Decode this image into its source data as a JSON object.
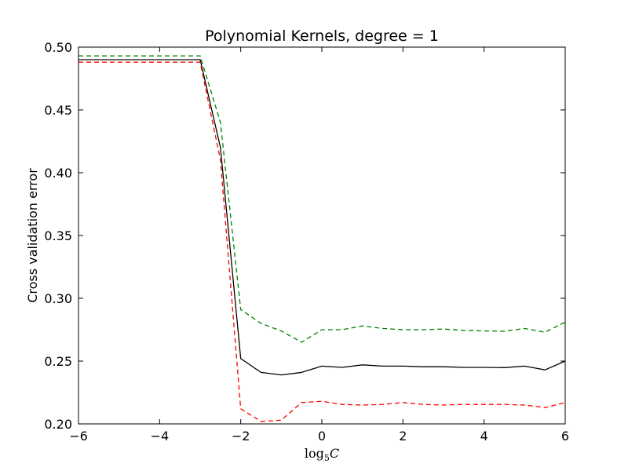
{
  "chart_data": {
    "type": "line",
    "title": "Polynomial Kernels, degree = 1",
    "xlabel": "log",
    "xlabel_sub": "5",
    "xlabel_var": "C",
    "ylabel": "Cross validation error",
    "xlim": [
      -6,
      6
    ],
    "ylim": [
      0.2,
      0.5
    ],
    "x_ticks": [
      -6,
      -4,
      -2,
      0,
      2,
      4,
      6
    ],
    "x_tick_labels": [
      "−6",
      "−4",
      "−2",
      "0",
      "2",
      "4",
      "6"
    ],
    "y_ticks": [
      0.2,
      0.25,
      0.3,
      0.35,
      0.4,
      0.45,
      0.5
    ],
    "y_tick_labels": [
      "0.20",
      "0.25",
      "0.30",
      "0.35",
      "0.40",
      "0.45",
      "0.50"
    ],
    "grid": false,
    "x": [
      -6,
      -5.5,
      -5,
      -4.5,
      -4,
      -3.5,
      -3,
      -2.5,
      -2,
      -1.5,
      -1,
      -0.5,
      0,
      0.5,
      1,
      1.5,
      2,
      2.5,
      3,
      3.5,
      4,
      4.5,
      5,
      5.5,
      6
    ],
    "series": [
      {
        "color": "#000000",
        "dash": "solid",
        "values": [
          0.49,
          0.49,
          0.49,
          0.49,
          0.49,
          0.49,
          0.49,
          0.42,
          0.252,
          0.241,
          0.239,
          0.241,
          0.246,
          0.245,
          0.247,
          0.246,
          0.246,
          0.2455,
          0.2455,
          0.245,
          0.245,
          0.2448,
          0.246,
          0.243,
          0.25
        ]
      },
      {
        "color": "#008000",
        "dash": "dashed",
        "values": [
          0.493,
          0.493,
          0.493,
          0.493,
          0.493,
          0.493,
          0.493,
          0.44,
          0.291,
          0.28,
          0.274,
          0.265,
          0.275,
          0.275,
          0.278,
          0.276,
          0.275,
          0.275,
          0.2755,
          0.2745,
          0.274,
          0.2738,
          0.276,
          0.273,
          0.281
        ]
      },
      {
        "color": "#ff0000",
        "dash": "dashed",
        "values": [
          0.488,
          0.488,
          0.488,
          0.488,
          0.488,
          0.488,
          0.488,
          0.41,
          0.212,
          0.202,
          0.203,
          0.217,
          0.218,
          0.2155,
          0.215,
          0.2155,
          0.217,
          0.2155,
          0.215,
          0.2155,
          0.2155,
          0.2155,
          0.215,
          0.213,
          0.217
        ]
      }
    ]
  }
}
